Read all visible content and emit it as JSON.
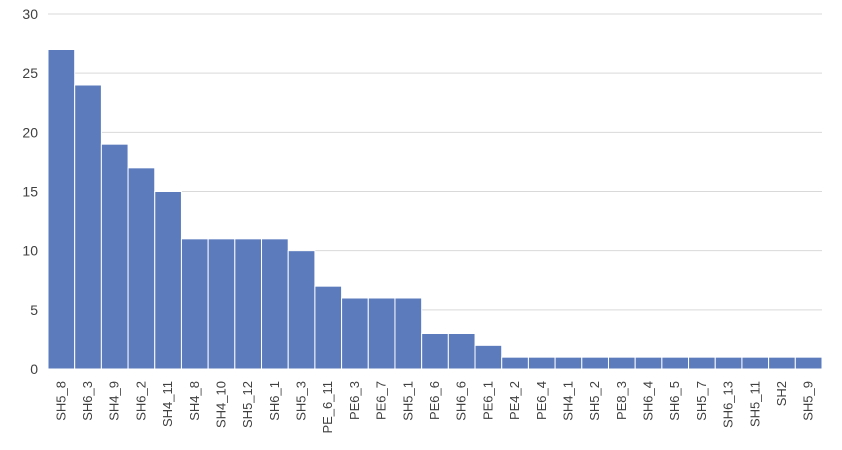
{
  "chart_data": {
    "type": "bar",
    "title": "",
    "xlabel": "",
    "ylabel": "",
    "ylim": [
      0,
      30
    ],
    "yticks": [
      0,
      5,
      10,
      15,
      20,
      25,
      30
    ],
    "grid": true,
    "bar_color": "#5b7bbd",
    "categories": [
      "SH5_8",
      "SH6_3",
      "SH4_9",
      "SH6_2",
      "SH4_11",
      "SH4_8",
      "SH4_10",
      "SH5_12",
      "SH6_1",
      "SH5_3",
      "PE_6_11",
      "PE6_3",
      "PE6_7",
      "SH5_1",
      "PE6_6",
      "SH6_6",
      "PE6_1",
      "PE4_2",
      "PE6_4",
      "SH4_1",
      "SH5_2",
      "PE8_3",
      "SH6_4",
      "SH6_5",
      "SH5_7",
      "SH6_13",
      "SH5_11",
      "SH2",
      "SH5_9"
    ],
    "values": [
      27,
      24,
      19,
      17,
      15,
      11,
      11,
      11,
      11,
      10,
      7,
      6,
      6,
      6,
      3,
      3,
      2,
      1,
      1,
      1,
      1,
      1,
      1,
      1,
      1,
      1,
      1,
      1,
      1
    ]
  }
}
